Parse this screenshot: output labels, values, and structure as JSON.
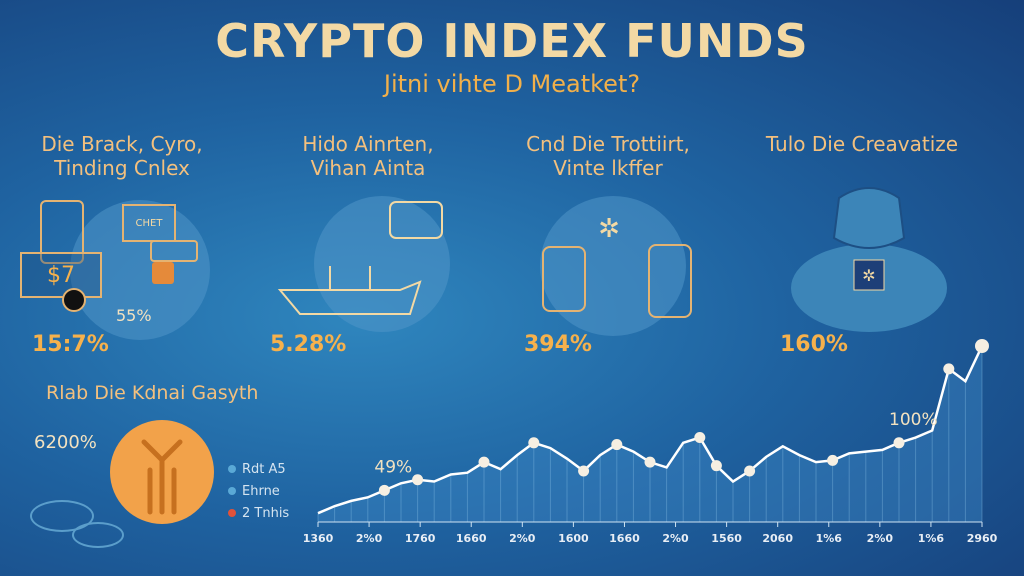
{
  "header": {
    "title": "CRYPTO INDEX FUNDS",
    "subtitle": "Jitni vihte D Meatket?"
  },
  "sections": [
    {
      "title_line1": "Die Brack, Cyro,",
      "title_line2": "Tinding Cnlex",
      "value": "15:7%",
      "secondary_value": "55%",
      "tag_value": "$7",
      "label_card": "CHET"
    },
    {
      "title_line1": "Hido Ainrten,",
      "title_line2": "Vihan Ainta",
      "value": "5.28%"
    },
    {
      "title_line1": "Cnd Die Trottiirt,",
      "title_line2": "Vinte lkffer",
      "value": "394%"
    },
    {
      "title_line1": "Tulo Die Creavatize",
      "title_line2": "",
      "value": "160%"
    }
  ],
  "growth_section": {
    "title": "Rlab Die Kdnai Gasyth",
    "value": "6200%",
    "legend": [
      {
        "label": "Rdt A5",
        "color": "#5aa9d6"
      },
      {
        "label": "Ehrne",
        "color": "#5aa9d6"
      },
      {
        "label": "2 Tnhis",
        "color": "#e0523a"
      }
    ]
  },
  "chart_data": {
    "type": "line",
    "x": [
      0,
      1,
      2,
      3,
      4,
      5,
      6,
      7,
      8,
      9,
      10,
      11,
      12,
      13,
      14,
      15,
      16,
      17,
      18,
      19,
      20,
      21,
      22,
      23,
      24,
      25,
      26,
      27,
      28,
      29,
      30,
      31,
      32,
      33,
      34,
      35,
      36,
      37,
      38,
      39,
      40
    ],
    "values": [
      5,
      9,
      12,
      14,
      18,
      22,
      24,
      23,
      27,
      28,
      34,
      30,
      38,
      45,
      42,
      36,
      29,
      38,
      44,
      40,
      34,
      31,
      45,
      48,
      32,
      23,
      29,
      37,
      43,
      38,
      34,
      35,
      39,
      40,
      41,
      45,
      48,
      52,
      87,
      80,
      100
    ],
    "marked_points": [
      4,
      6,
      10,
      13,
      16,
      18,
      20,
      23,
      24,
      26,
      31,
      35,
      38,
      40
    ],
    "annotations": [
      {
        "text": "49%",
        "x": 4
      },
      {
        "text": "100%",
        "x": 35
      }
    ],
    "x_tick_labels": [
      "1360",
      "2%0",
      "1760",
      "1660",
      "2%0",
      "1600",
      "1660",
      "2%0",
      "1560",
      "2060",
      "1%6",
      "2%0",
      "1%6",
      "2960"
    ],
    "ylim": [
      0,
      100
    ],
    "line_color": "#ffffff",
    "fill_color": "#3b86c4"
  }
}
